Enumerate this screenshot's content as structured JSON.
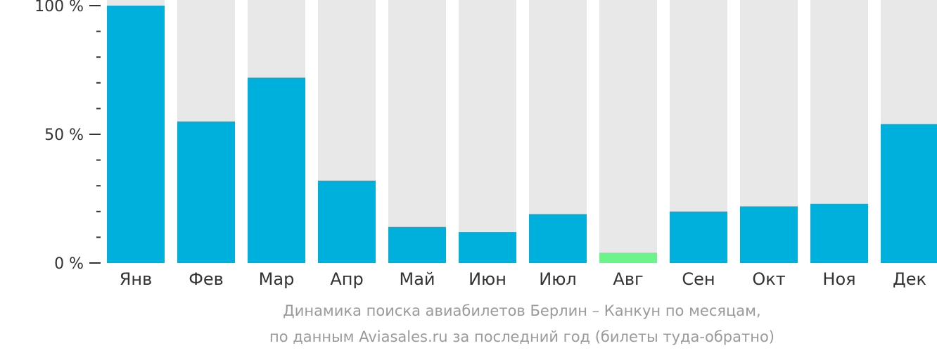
{
  "chart_data": {
    "type": "bar",
    "categories": [
      "Янв",
      "Фев",
      "Мар",
      "Апр",
      "Май",
      "Июн",
      "Июл",
      "Авг",
      "Сен",
      "Окт",
      "Ноя",
      "Дек"
    ],
    "values": [
      100,
      55,
      72,
      32,
      14,
      12,
      19,
      4,
      20,
      22,
      23,
      54
    ],
    "ylim": [
      0,
      100
    ],
    "yticks": [
      {
        "value": 0,
        "label": "0 %"
      },
      {
        "value": 50,
        "label": "50 %"
      },
      {
        "value": 100,
        "label": "100 %"
      }
    ],
    "minor_tick_step": 10,
    "highlight_index": 7,
    "colors": {
      "bar": "#00b0dc",
      "highlight": "#6cf48a",
      "track": "#e8e8e8",
      "axis": "#333333"
    }
  },
  "caption": {
    "line1": "Динамика поиска авиабилетов Берлин – Канкун по месяцам,",
    "line2": "по данным Aviasales.ru за последний год (билеты туда-обратно)"
  }
}
